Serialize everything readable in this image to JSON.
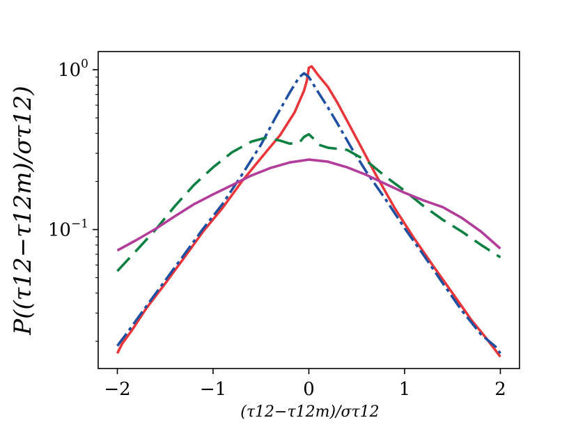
{
  "chart_data": {
    "type": "line",
    "xlabel": "(τ12−τ12m)/στ12",
    "ylabel": "P((τ12−τ12m)/στ12)",
    "yscale": "log",
    "xlim": [
      -2.2,
      2.2
    ],
    "ylim": [
      0.0135,
      1.3
    ],
    "x_ticks": [
      -2,
      -1,
      0,
      1,
      2
    ],
    "x_tick_labels": [
      "−2",
      "−1",
      "0",
      "1",
      "2"
    ],
    "y_ticks": [
      {
        "value": 1,
        "base": "10",
        "exp": "0"
      },
      {
        "value": 0.1,
        "base": "10",
        "exp": "−1"
      }
    ],
    "grid": false,
    "series": [
      {
        "color": "#e8363a",
        "dash": "solid",
        "points": [
          [
            -2.0,
            0.0168
          ],
          [
            -1.95,
            0.0193
          ],
          [
            -1.85,
            0.0233
          ],
          [
            -1.7,
            0.032
          ],
          [
            -1.5,
            0.046
          ],
          [
            -1.3,
            0.067
          ],
          [
            -1.1,
            0.098
          ],
          [
            -0.9,
            0.137
          ],
          [
            -0.7,
            0.2
          ],
          [
            -0.5,
            0.28
          ],
          [
            -0.3,
            0.39
          ],
          [
            -0.15,
            0.54
          ],
          [
            -0.05,
            0.74
          ],
          [
            -0.02,
            0.86
          ],
          [
            0.0,
            1.03
          ],
          [
            0.03,
            1.05
          ],
          [
            0.1,
            0.92
          ],
          [
            0.2,
            0.78
          ],
          [
            0.3,
            0.62
          ],
          [
            0.5,
            0.37
          ],
          [
            0.7,
            0.22
          ],
          [
            0.9,
            0.135
          ],
          [
            1.1,
            0.088
          ],
          [
            1.3,
            0.059
          ],
          [
            1.5,
            0.04
          ],
          [
            1.7,
            0.027
          ],
          [
            1.85,
            0.021
          ],
          [
            1.95,
            0.0175
          ],
          [
            2.0,
            0.016
          ]
        ]
      },
      {
        "color": "#1f4fa0",
        "dash": "dash-dot",
        "points": [
          [
            -2.0,
            0.0187
          ],
          [
            -1.9,
            0.0225
          ],
          [
            -1.7,
            0.033
          ],
          [
            -1.5,
            0.048
          ],
          [
            -1.3,
            0.07
          ],
          [
            -1.1,
            0.102
          ],
          [
            -0.9,
            0.145
          ],
          [
            -0.7,
            0.22
          ],
          [
            -0.5,
            0.34
          ],
          [
            -0.35,
            0.5
          ],
          [
            -0.2,
            0.72
          ],
          [
            -0.1,
            0.9
          ],
          [
            -0.05,
            0.95
          ],
          [
            0.0,
            0.9
          ],
          [
            0.1,
            0.72
          ],
          [
            0.2,
            0.58
          ],
          [
            0.3,
            0.46
          ],
          [
            0.45,
            0.32
          ],
          [
            0.6,
            0.23
          ],
          [
            0.8,
            0.155
          ],
          [
            1.0,
            0.102
          ],
          [
            1.2,
            0.069
          ],
          [
            1.4,
            0.046
          ],
          [
            1.6,
            0.031
          ],
          [
            1.8,
            0.022
          ],
          [
            1.95,
            0.0185
          ],
          [
            2.0,
            0.0168
          ]
        ]
      },
      {
        "color": "#0b8042",
        "dash": "dashed",
        "points": [
          [
            -2.0,
            0.055
          ],
          [
            -1.8,
            0.074
          ],
          [
            -1.6,
            0.1
          ],
          [
            -1.4,
            0.14
          ],
          [
            -1.2,
            0.19
          ],
          [
            -1.0,
            0.245
          ],
          [
            -0.8,
            0.305
          ],
          [
            -0.6,
            0.355
          ],
          [
            -0.45,
            0.375
          ],
          [
            -0.3,
            0.36
          ],
          [
            -0.2,
            0.345
          ],
          [
            -0.1,
            0.35
          ],
          [
            -0.05,
            0.38
          ],
          [
            0.0,
            0.395
          ],
          [
            0.05,
            0.37
          ],
          [
            0.1,
            0.34
          ],
          [
            0.2,
            0.325
          ],
          [
            0.4,
            0.315
          ],
          [
            0.6,
            0.27
          ],
          [
            0.8,
            0.215
          ],
          [
            1.0,
            0.175
          ],
          [
            1.2,
            0.14
          ],
          [
            1.4,
            0.115
          ],
          [
            1.6,
            0.097
          ],
          [
            1.8,
            0.08
          ],
          [
            2.0,
            0.067
          ]
        ]
      },
      {
        "color": "#b23c9a",
        "dash": "solid",
        "points": [
          [
            -2.0,
            0.074
          ],
          [
            -1.8,
            0.086
          ],
          [
            -1.6,
            0.101
          ],
          [
            -1.4,
            0.121
          ],
          [
            -1.2,
            0.144
          ],
          [
            -1.0,
            0.166
          ],
          [
            -0.8,
            0.19
          ],
          [
            -0.6,
            0.218
          ],
          [
            -0.4,
            0.243
          ],
          [
            -0.2,
            0.263
          ],
          [
            0.0,
            0.274
          ],
          [
            0.2,
            0.266
          ],
          [
            0.4,
            0.245
          ],
          [
            0.6,
            0.22
          ],
          [
            0.8,
            0.193
          ],
          [
            1.0,
            0.17
          ],
          [
            1.2,
            0.152
          ],
          [
            1.4,
            0.138
          ],
          [
            1.6,
            0.118
          ],
          [
            1.8,
            0.097
          ],
          [
            2.0,
            0.076
          ]
        ]
      }
    ]
  }
}
